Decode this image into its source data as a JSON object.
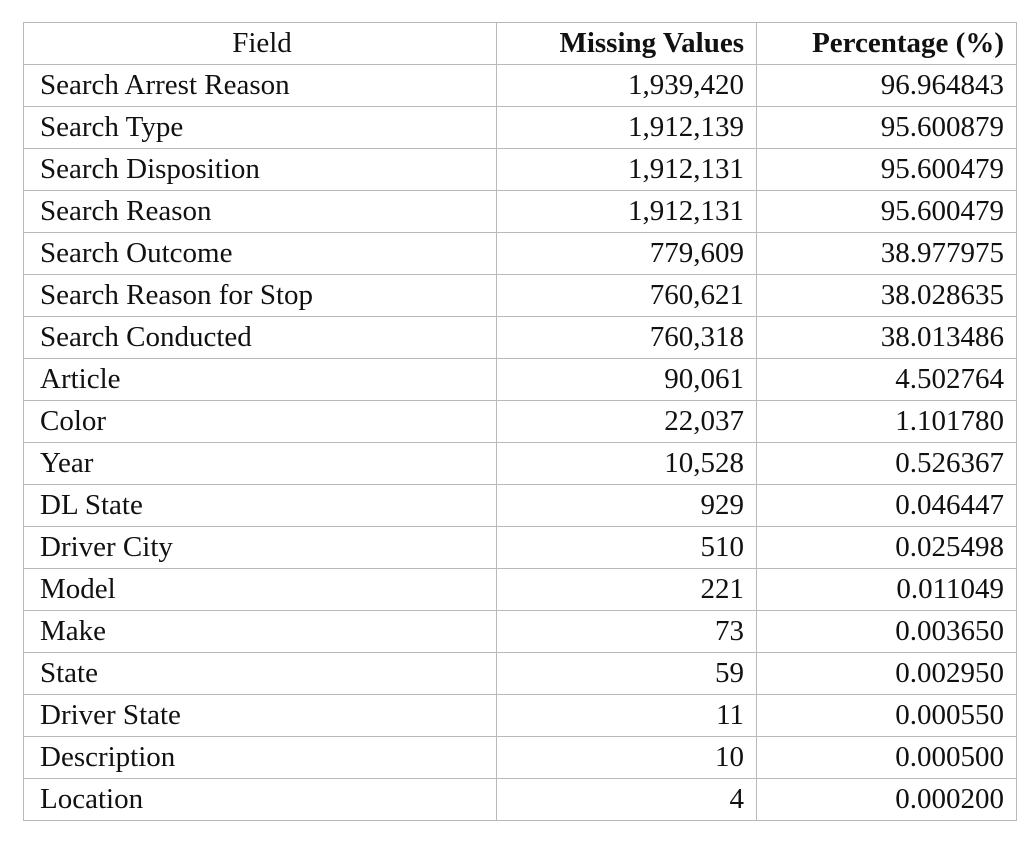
{
  "table": {
    "headers": {
      "field": "Field",
      "missing": "Missing Values",
      "percentage": "Percentage (%)"
    },
    "rows": [
      {
        "field": "Search Arrest Reason",
        "missing": "1,939,420",
        "percentage": "96.964843"
      },
      {
        "field": "Search Type",
        "missing": "1,912,139",
        "percentage": "95.600879"
      },
      {
        "field": "Search Disposition",
        "missing": "1,912,131",
        "percentage": "95.600479"
      },
      {
        "field": "Search Reason",
        "missing": "1,912,131",
        "percentage": "95.600479"
      },
      {
        "field": "Search Outcome",
        "missing": "779,609",
        "percentage": "38.977975"
      },
      {
        "field": "Search Reason for Stop",
        "missing": "760,621",
        "percentage": "38.028635"
      },
      {
        "field": "Search Conducted",
        "missing": "760,318",
        "percentage": "38.013486"
      },
      {
        "field": "Article",
        "missing": "90,061",
        "percentage": "4.502764"
      },
      {
        "field": "Color",
        "missing": "22,037",
        "percentage": "1.101780"
      },
      {
        "field": "Year",
        "missing": "10,528",
        "percentage": "0.526367"
      },
      {
        "field": "DL State",
        "missing": "929",
        "percentage": "0.046447"
      },
      {
        "field": "Driver City",
        "missing": "510",
        "percentage": "0.025498"
      },
      {
        "field": "Model",
        "missing": "221",
        "percentage": "0.011049"
      },
      {
        "field": "Make",
        "missing": "73",
        "percentage": "0.003650"
      },
      {
        "field": "State",
        "missing": "59",
        "percentage": "0.002950"
      },
      {
        "field": "Driver State",
        "missing": "11",
        "percentage": "0.000550"
      },
      {
        "field": "Description",
        "missing": "10",
        "percentage": "0.000500"
      },
      {
        "field": "Location",
        "missing": "4",
        "percentage": "0.000200"
      }
    ]
  },
  "colors": {
    "border": "#b9b9b9",
    "text": "#111111",
    "background": "#ffffff"
  }
}
